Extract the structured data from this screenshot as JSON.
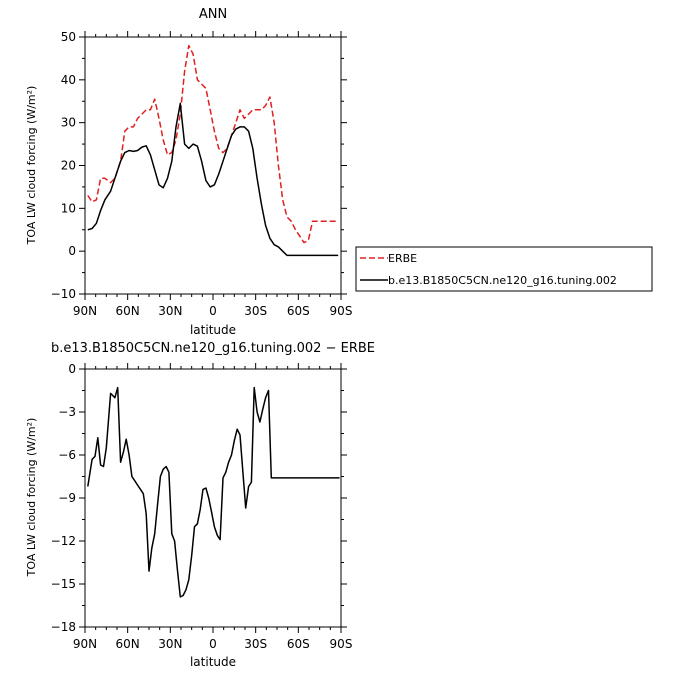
{
  "chart_data": [
    {
      "type": "line",
      "title": "ANN",
      "xlabel": "latitude",
      "ylabel": "TOA LW cloud forcing (W/m²)",
      "xlim": [
        90,
        -90
      ],
      "ylim": [
        -10,
        50
      ],
      "x_ticks": [
        {
          "value": 90,
          "label": "90N"
        },
        {
          "value": 60,
          "label": "60N"
        },
        {
          "value": 30,
          "label": "30N"
        },
        {
          "value": 0,
          "label": "0"
        },
        {
          "value": -30,
          "label": "30S"
        },
        {
          "value": -60,
          "label": "60S"
        },
        {
          "value": -90,
          "label": "90S"
        }
      ],
      "y_ticks": [
        {
          "value": -10,
          "label": "−10"
        },
        {
          "value": 0,
          "label": "0"
        },
        {
          "value": 10,
          "label": "10"
        },
        {
          "value": 20,
          "label": "20"
        },
        {
          "value": 30,
          "label": "30"
        },
        {
          "value": 40,
          "label": "40"
        },
        {
          "value": 50,
          "label": "50"
        }
      ],
      "grid": false,
      "legend_position": "right",
      "series": [
        {
          "name": "ERBE",
          "color": "#e02020",
          "dash": true,
          "x": [
            88,
            85,
            82,
            79,
            76,
            72,
            69,
            65,
            62,
            59,
            56,
            53,
            50,
            47,
            44,
            41,
            38,
            35,
            32,
            29,
            26,
            23,
            20,
            17,
            14,
            11,
            8,
            5,
            2,
            -1,
            -4,
            -7,
            -10,
            -13,
            -16,
            -19,
            -22,
            -25,
            -28,
            -31,
            -34,
            -37,
            -40,
            -43,
            -46,
            -49,
            -52,
            -55,
            -58,
            -61,
            -64,
            -67,
            -70,
            -73,
            -76,
            -79,
            -82,
            -85,
            -88
          ],
          "y": [
            13,
            11.5,
            12,
            17,
            17,
            16,
            17,
            21,
            28,
            29,
            29,
            31,
            32,
            33,
            33,
            35.5,
            31,
            26,
            22.5,
            23,
            26,
            32,
            42,
            48,
            46,
            40,
            39,
            38,
            33,
            28,
            24,
            23,
            24,
            27,
            30,
            33,
            31,
            32,
            33,
            33,
            33,
            34,
            36,
            30,
            20,
            12,
            8,
            7,
            5,
            3.5,
            2,
            2.5,
            7,
            7,
            7,
            7,
            7,
            7,
            7
          ]
        },
        {
          "name": "b.e13.B1850C5CN.ne120_g16.tuning.002",
          "color": "#000000",
          "dash": false,
          "x": [
            88,
            85,
            82,
            79,
            76,
            72,
            69,
            65,
            62,
            59,
            56,
            53,
            50,
            47,
            44,
            41,
            38,
            35,
            32,
            29,
            26,
            23,
            20,
            17,
            14,
            11,
            8,
            5,
            2,
            -1,
            -4,
            -7,
            -10,
            -13,
            -16,
            -19,
            -22,
            -25,
            -28,
            -31,
            -34,
            -37,
            -40,
            -43,
            -46,
            -49,
            -52,
            -55,
            -58,
            -61,
            -64,
            -67,
            -70,
            -73,
            -76,
            -79,
            -82,
            -85,
            -88
          ],
          "y": [
            5,
            5.3,
            6.5,
            9.5,
            12,
            14,
            17,
            21,
            23,
            23.5,
            23.3,
            23.5,
            24.3,
            24.6,
            22.5,
            19,
            15.5,
            14.8,
            17,
            21,
            29,
            34.5,
            25,
            24,
            25,
            24.5,
            21,
            16.5,
            15,
            15.5,
            18,
            21,
            24,
            27,
            28.5,
            29,
            29,
            28,
            24,
            17,
            11,
            6,
            3,
            1.5,
            1,
            0,
            -1,
            -1,
            -1,
            -1,
            -1,
            -1,
            -1,
            -1,
            -1,
            -1,
            -1,
            -1,
            -1
          ]
        }
      ]
    },
    {
      "type": "line",
      "title": "b.e13.B1850C5CN.ne120_g16.tuning.002 − ERBE",
      "xlabel": "latitude",
      "ylabel": "TOA LW cloud forcing (W/m²)",
      "xlim": [
        90,
        -90
      ],
      "ylim": [
        -18,
        0
      ],
      "x_ticks": [
        {
          "value": 90,
          "label": "90N"
        },
        {
          "value": 60,
          "label": "60N"
        },
        {
          "value": 30,
          "label": "30N"
        },
        {
          "value": 0,
          "label": "0"
        },
        {
          "value": -30,
          "label": "30S"
        },
        {
          "value": -60,
          "label": "60S"
        },
        {
          "value": -90,
          "label": "90S"
        }
      ],
      "y_ticks": [
        {
          "value": -18,
          "label": "−18"
        },
        {
          "value": -15,
          "label": "−15"
        },
        {
          "value": -12,
          "label": "−12"
        },
        {
          "value": -9,
          "label": "−9"
        },
        {
          "value": -6,
          "label": "−6"
        },
        {
          "value": -3,
          "label": "−3"
        },
        {
          "value": 0,
          "label": "0"
        }
      ],
      "grid": false,
      "series": [
        {
          "color": "#000000",
          "dash": false,
          "x": [
            88,
            85,
            83,
            81,
            79,
            77,
            75,
            72,
            69,
            67,
            65,
            63,
            61,
            59,
            57,
            55,
            53,
            51,
            49,
            47,
            45,
            43,
            41,
            39,
            37,
            35,
            33,
            31,
            29,
            27,
            25,
            23,
            21,
            19,
            17,
            15,
            13,
            11,
            9,
            7,
            5,
            3,
            1,
            -1,
            -3,
            -5,
            -7,
            -9,
            -11,
            -13,
            -15,
            -17,
            -19,
            -21,
            -23,
            -25,
            -27,
            -29,
            -31,
            -33,
            -35,
            -37,
            -39,
            -41,
            -43,
            -45,
            -47,
            -49,
            -51,
            -53,
            -55,
            -57,
            -59,
            -61,
            -63,
            -65,
            -67,
            -69,
            -71,
            -73,
            -75,
            -77,
            -79,
            -81,
            -83,
            -85,
            -87,
            -89
          ],
          "y": [
            -8.2,
            -6.3,
            -6.1,
            -4.8,
            -6.7,
            -6.8,
            -5.5,
            -1.7,
            -2,
            -1.3,
            -6.5,
            -5.8,
            -4.9,
            -6,
            -7.5,
            -7.8,
            -8.1,
            -8.4,
            -8.7,
            -10.1,
            -14.1,
            -12.5,
            -11.5,
            -9.5,
            -7.5,
            -7.0,
            -6.8,
            -7.2,
            -11.5,
            -12.0,
            -14.0,
            -15.9,
            -15.8,
            -15.4,
            -14.7,
            -13.0,
            -11.0,
            -10.8,
            -9.8,
            -8.4,
            -8.3,
            -9.0,
            -10.0,
            -11.0,
            -11.6,
            -11.9,
            -7.6,
            -7.2,
            -6.5,
            -6.0,
            -5.0,
            -4.2,
            -4.6,
            -7.2,
            -9.7,
            -8.2,
            -7.9,
            -1.3,
            -3.0,
            -3.7,
            -2.8,
            -2.0,
            -1.5,
            -7.6,
            -7.6,
            -7.6,
            -7.6,
            -7.6,
            -7.6,
            -7.6,
            -7.6,
            -7.6,
            -7.6,
            -7.6,
            -7.6,
            -7.6,
            -7.6,
            -7.6,
            -7.6,
            -7.6,
            -7.6,
            -7.6,
            -7.6,
            -7.6,
            -7.6,
            -7.6,
            -7.6,
            -7.6
          ]
        }
      ]
    }
  ]
}
